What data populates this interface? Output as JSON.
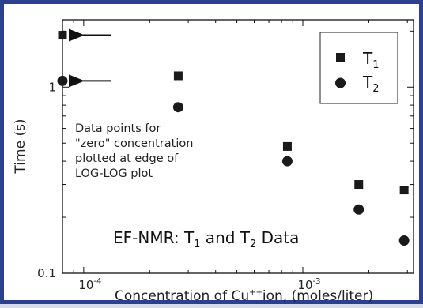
{
  "chart_data": {
    "type": "scatter",
    "scale": {
      "x": "log",
      "y": "log"
    },
    "xlim": [
      8e-05,
      0.0032
    ],
    "ylim": [
      0.1,
      2.3
    ],
    "xlabel": {
      "prefix": "Concentration of Cu",
      "sup": "++",
      "suffix": "ion, (moles/liter)"
    },
    "ylabel": "Time (s)",
    "x_ticks": [
      {
        "value": 0.0001,
        "base": "10",
        "exp": "-4"
      },
      {
        "value": 0.001,
        "base": "10",
        "exp": "-3"
      }
    ],
    "y_ticks": [
      {
        "value": 0.1,
        "label": "0.1"
      },
      {
        "value": 1,
        "label": "1"
      }
    ],
    "series": [
      {
        "name": "T",
        "sub": "1",
        "marker": "square",
        "points": [
          [
            8e-05,
            1.9
          ],
          [
            0.00027,
            1.15
          ],
          [
            0.00085,
            0.48
          ],
          [
            0.0018,
            0.3
          ],
          [
            0.0029,
            0.28
          ]
        ]
      },
      {
        "name": "T",
        "sub": "2",
        "marker": "circle",
        "points": [
          [
            8e-05,
            1.08
          ],
          [
            0.00027,
            0.78
          ],
          [
            0.00085,
            0.4
          ],
          [
            0.0018,
            0.22
          ],
          [
            0.0029,
            0.15
          ]
        ]
      }
    ],
    "annotation_lines": [
      "Data points for",
      "\"zero\" concentration",
      "plotted at edge of",
      "LOG-LOG plot"
    ],
    "inner_title": {
      "prefix": "EF-NMR:  T",
      "sub1": "1",
      "mid": " and T",
      "sub2": "2",
      "suffix": " Data"
    },
    "arrows_point_to": [
      [
        8e-05,
        1.9
      ],
      [
        8e-05,
        1.08
      ]
    ],
    "legend_position": "top-right",
    "marker_color": "#1a1a1a"
  }
}
